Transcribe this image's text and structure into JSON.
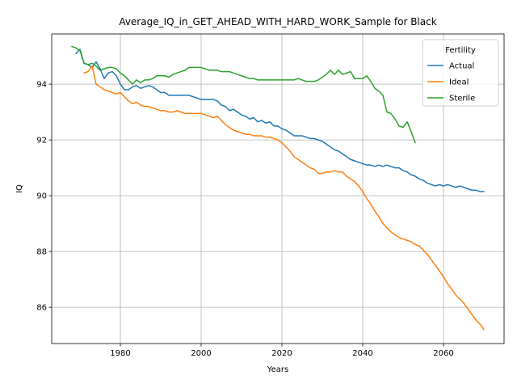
{
  "chart_data": {
    "type": "line",
    "title": "Average_IQ_in_GET_AHEAD_WITH_HARD_WORK_Sample for Black",
    "xlabel": "Years",
    "ylabel": "IQ",
    "xlim": [
      1963,
      2075
    ],
    "ylim": [
      84.7,
      95.8
    ],
    "x_ticks": [
      1980,
      2000,
      2020,
      2040,
      2060
    ],
    "y_ticks": [
      86,
      88,
      90,
      92,
      94
    ],
    "grid": true,
    "legend": {
      "title": "Fertility",
      "placement": "top-right"
    },
    "series": [
      {
        "name": "Actual",
        "color": "#1f77b4",
        "x": [
          1969,
          1970,
          1971,
          1972,
          1973,
          1974,
          1975,
          1976,
          1977,
          1978,
          1979,
          1980,
          1981,
          1982,
          1983,
          1984,
          1985,
          1986,
          1987,
          1988,
          1989,
          1990,
          1991,
          1992,
          1993,
          1994,
          1995,
          1996,
          1997,
          1998,
          1999,
          2000,
          2001,
          2002,
          2003,
          2004,
          2005,
          2006,
          2007,
          2008,
          2009,
          2010,
          2011,
          2012,
          2013,
          2014,
          2015,
          2016,
          2017,
          2018,
          2019,
          2020,
          2021,
          2022,
          2023,
          2024,
          2025,
          2026,
          2027,
          2028,
          2029,
          2030,
          2031,
          2032,
          2033,
          2034,
          2035,
          2036,
          2037,
          2038,
          2039,
          2040,
          2041,
          2042,
          2043,
          2044,
          2045,
          2046,
          2047,
          2048,
          2049,
          2050,
          2051,
          2052,
          2053,
          2054,
          2055,
          2056,
          2057,
          2058,
          2059,
          2060,
          2061,
          2062,
          2063,
          2064,
          2065,
          2066,
          2067,
          2068,
          2069,
          2070
        ],
        "values": [
          95.1,
          95.25,
          94.75,
          94.7,
          94.6,
          94.8,
          94.55,
          94.2,
          94.4,
          94.45,
          94.3,
          94.0,
          93.8,
          93.8,
          93.9,
          93.95,
          93.85,
          93.9,
          93.95,
          93.9,
          93.8,
          93.7,
          93.7,
          93.6,
          93.6,
          93.6,
          93.6,
          93.6,
          93.6,
          93.55,
          93.5,
          93.45,
          93.45,
          93.45,
          93.45,
          93.4,
          93.25,
          93.2,
          93.05,
          93.1,
          93.0,
          92.9,
          92.85,
          92.75,
          92.8,
          92.65,
          92.7,
          92.6,
          92.65,
          92.5,
          92.5,
          92.4,
          92.35,
          92.25,
          92.15,
          92.15,
          92.15,
          92.1,
          92.05,
          92.05,
          92.0,
          91.95,
          91.85,
          91.75,
          91.65,
          91.6,
          91.5,
          91.4,
          91.3,
          91.25,
          91.2,
          91.15,
          91.1,
          91.1,
          91.05,
          91.1,
          91.05,
          91.1,
          91.05,
          91.0,
          91.0,
          90.9,
          90.85,
          90.75,
          90.7,
          90.6,
          90.55,
          90.45,
          90.4,
          90.35,
          90.4,
          90.35,
          90.4,
          90.35,
          90.3,
          90.35,
          90.3,
          90.25,
          90.2,
          90.2,
          90.15,
          90.15
        ]
      },
      {
        "name": "Ideal",
        "color": "#ff7f0e",
        "x": [
          1971,
          1972,
          1973,
          1974,
          1975,
          1976,
          1977,
          1978,
          1979,
          1980,
          1981,
          1982,
          1983,
          1984,
          1985,
          1986,
          1987,
          1988,
          1989,
          1990,
          1991,
          1992,
          1993,
          1994,
          1995,
          1996,
          1997,
          1998,
          1999,
          2000,
          2001,
          2002,
          2003,
          2004,
          2005,
          2006,
          2007,
          2008,
          2009,
          2010,
          2011,
          2012,
          2013,
          2014,
          2015,
          2016,
          2017,
          2018,
          2019,
          2020,
          2021,
          2022,
          2023,
          2024,
          2025,
          2026,
          2027,
          2028,
          2029,
          2030,
          2031,
          2032,
          2033,
          2034,
          2035,
          2036,
          2037,
          2038,
          2039,
          2040,
          2041,
          2042,
          2043,
          2044,
          2045,
          2046,
          2047,
          2048,
          2049,
          2050,
          2051,
          2052,
          2053,
          2054,
          2055,
          2056,
          2057,
          2058,
          2059,
          2060,
          2061,
          2062,
          2063,
          2064,
          2065,
          2066,
          2067,
          2068,
          2069,
          2070
        ],
        "values": [
          94.4,
          94.45,
          94.65,
          94.0,
          93.9,
          93.8,
          93.75,
          93.7,
          93.65,
          93.7,
          93.55,
          93.4,
          93.3,
          93.35,
          93.25,
          93.2,
          93.2,
          93.15,
          93.1,
          93.05,
          93.05,
          93.0,
          93.0,
          93.05,
          93.0,
          92.95,
          92.95,
          92.95,
          92.95,
          92.95,
          92.9,
          92.85,
          92.8,
          92.85,
          92.7,
          92.55,
          92.45,
          92.35,
          92.3,
          92.25,
          92.2,
          92.2,
          92.15,
          92.15,
          92.15,
          92.1,
          92.1,
          92.05,
          92.0,
          91.9,
          91.75,
          91.6,
          91.4,
          91.3,
          91.2,
          91.1,
          91.0,
          90.95,
          90.8,
          90.8,
          90.85,
          90.85,
          90.9,
          90.85,
          90.85,
          90.7,
          90.6,
          90.5,
          90.35,
          90.15,
          89.9,
          89.7,
          89.45,
          89.25,
          89.0,
          88.85,
          88.7,
          88.6,
          88.5,
          88.45,
          88.4,
          88.35,
          88.25,
          88.2,
          88.05,
          87.9,
          87.7,
          87.5,
          87.3,
          87.1,
          86.85,
          86.65,
          86.45,
          86.3,
          86.15,
          85.95,
          85.75,
          85.55,
          85.4,
          85.2
        ]
      },
      {
        "name": "Sterile",
        "color": "#2ca02c",
        "x": [
          1968,
          1969,
          1970,
          1971,
          1972,
          1973,
          1974,
          1975,
          1976,
          1977,
          1978,
          1979,
          1980,
          1981,
          1982,
          1983,
          1984,
          1985,
          1986,
          1987,
          1988,
          1989,
          1990,
          1991,
          1992,
          1993,
          1994,
          1995,
          1996,
          1997,
          1998,
          1999,
          2000,
          2001,
          2002,
          2003,
          2004,
          2005,
          2006,
          2007,
          2008,
          2009,
          2010,
          2011,
          2012,
          2013,
          2014,
          2015,
          2016,
          2017,
          2018,
          2019,
          2020,
          2021,
          2022,
          2023,
          2024,
          2025,
          2026,
          2027,
          2028,
          2029,
          2030,
          2031,
          2032,
          2033,
          2034,
          2035,
          2036,
          2037,
          2038,
          2039,
          2040,
          2041,
          2042,
          2043,
          2044,
          2045,
          2046,
          2047,
          2048,
          2049,
          2050,
          2051,
          2052,
          2053
        ],
        "values": [
          95.35,
          95.3,
          95.2,
          94.75,
          94.7,
          94.75,
          94.65,
          94.5,
          94.55,
          94.6,
          94.6,
          94.55,
          94.4,
          94.3,
          94.15,
          94.0,
          94.15,
          94.05,
          94.15,
          94.15,
          94.2,
          94.3,
          94.3,
          94.3,
          94.25,
          94.35,
          94.4,
          94.45,
          94.5,
          94.6,
          94.6,
          94.6,
          94.6,
          94.55,
          94.5,
          94.5,
          94.5,
          94.45,
          94.45,
          94.45,
          94.4,
          94.35,
          94.3,
          94.25,
          94.2,
          94.2,
          94.15,
          94.15,
          94.15,
          94.15,
          94.15,
          94.15,
          94.15,
          94.15,
          94.15,
          94.15,
          94.2,
          94.15,
          94.1,
          94.1,
          94.1,
          94.15,
          94.25,
          94.35,
          94.5,
          94.35,
          94.5,
          94.35,
          94.4,
          94.45,
          94.2,
          94.2,
          94.2,
          94.3,
          94.1,
          93.85,
          93.75,
          93.6,
          93.0,
          92.95,
          92.75,
          92.5,
          92.45,
          92.65,
          92.3,
          91.9
        ]
      }
    ]
  }
}
